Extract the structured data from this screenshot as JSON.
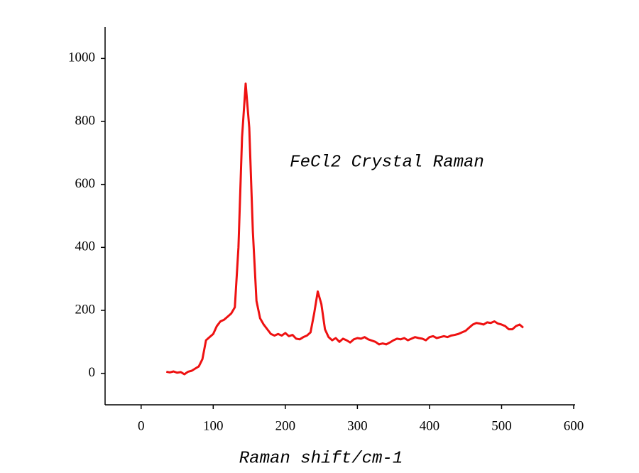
{
  "chart_data": {
    "type": "line",
    "annotation": "FeCl2 Crystal Raman",
    "x_label": "Raman shift/cm-1",
    "x": [
      35,
      40,
      45,
      50,
      55,
      60,
      65,
      70,
      75,
      80,
      85,
      90,
      95,
      100,
      105,
      110,
      115,
      120,
      125,
      130,
      135,
      140,
      145,
      150,
      155,
      160,
      165,
      170,
      175,
      180,
      185,
      190,
      195,
      200,
      205,
      210,
      215,
      220,
      225,
      230,
      235,
      240,
      245,
      250,
      255,
      260,
      265,
      270,
      275,
      280,
      285,
      290,
      295,
      300,
      305,
      310,
      315,
      320,
      325,
      330,
      335,
      340,
      345,
      350,
      355,
      360,
      365,
      370,
      375,
      380,
      385,
      390,
      395,
      400,
      405,
      410,
      415,
      420,
      425,
      430,
      435,
      440,
      445,
      450,
      455,
      460,
      465,
      470,
      475,
      480,
      485,
      490,
      495,
      500,
      505,
      510,
      515,
      520,
      525,
      530
    ],
    "series": [
      {
        "color": "#ee1111",
        "values": [
          5,
          3,
          6,
          2,
          4,
          -3,
          5,
          8,
          15,
          22,
          45,
          105,
          115,
          125,
          150,
          165,
          170,
          180,
          190,
          210,
          400,
          750,
          920,
          780,
          450,
          230,
          175,
          155,
          140,
          125,
          120,
          125,
          120,
          128,
          118,
          122,
          110,
          108,
          115,
          120,
          130,
          190,
          260,
          220,
          140,
          115,
          105,
          112,
          100,
          110,
          105,
          98,
          108,
          112,
          110,
          115,
          108,
          104,
          100,
          92,
          95,
          92,
          98,
          105,
          110,
          108,
          112,
          105,
          110,
          115,
          112,
          110,
          105,
          115,
          118,
          112,
          115,
          118,
          115,
          120,
          122,
          125,
          130,
          135,
          145,
          155,
          160,
          158,
          155,
          162,
          160,
          165,
          158,
          155,
          150,
          140,
          140,
          150,
          155,
          145
        ]
      }
    ],
    "xlim": [
      -50,
      600
    ],
    "xticks": [
      0,
      100,
      200,
      300,
      400,
      500,
      600
    ],
    "ylim": [
      -100,
      1100
    ],
    "yticks": [
      0,
      200,
      400,
      600,
      800,
      1000
    ]
  }
}
